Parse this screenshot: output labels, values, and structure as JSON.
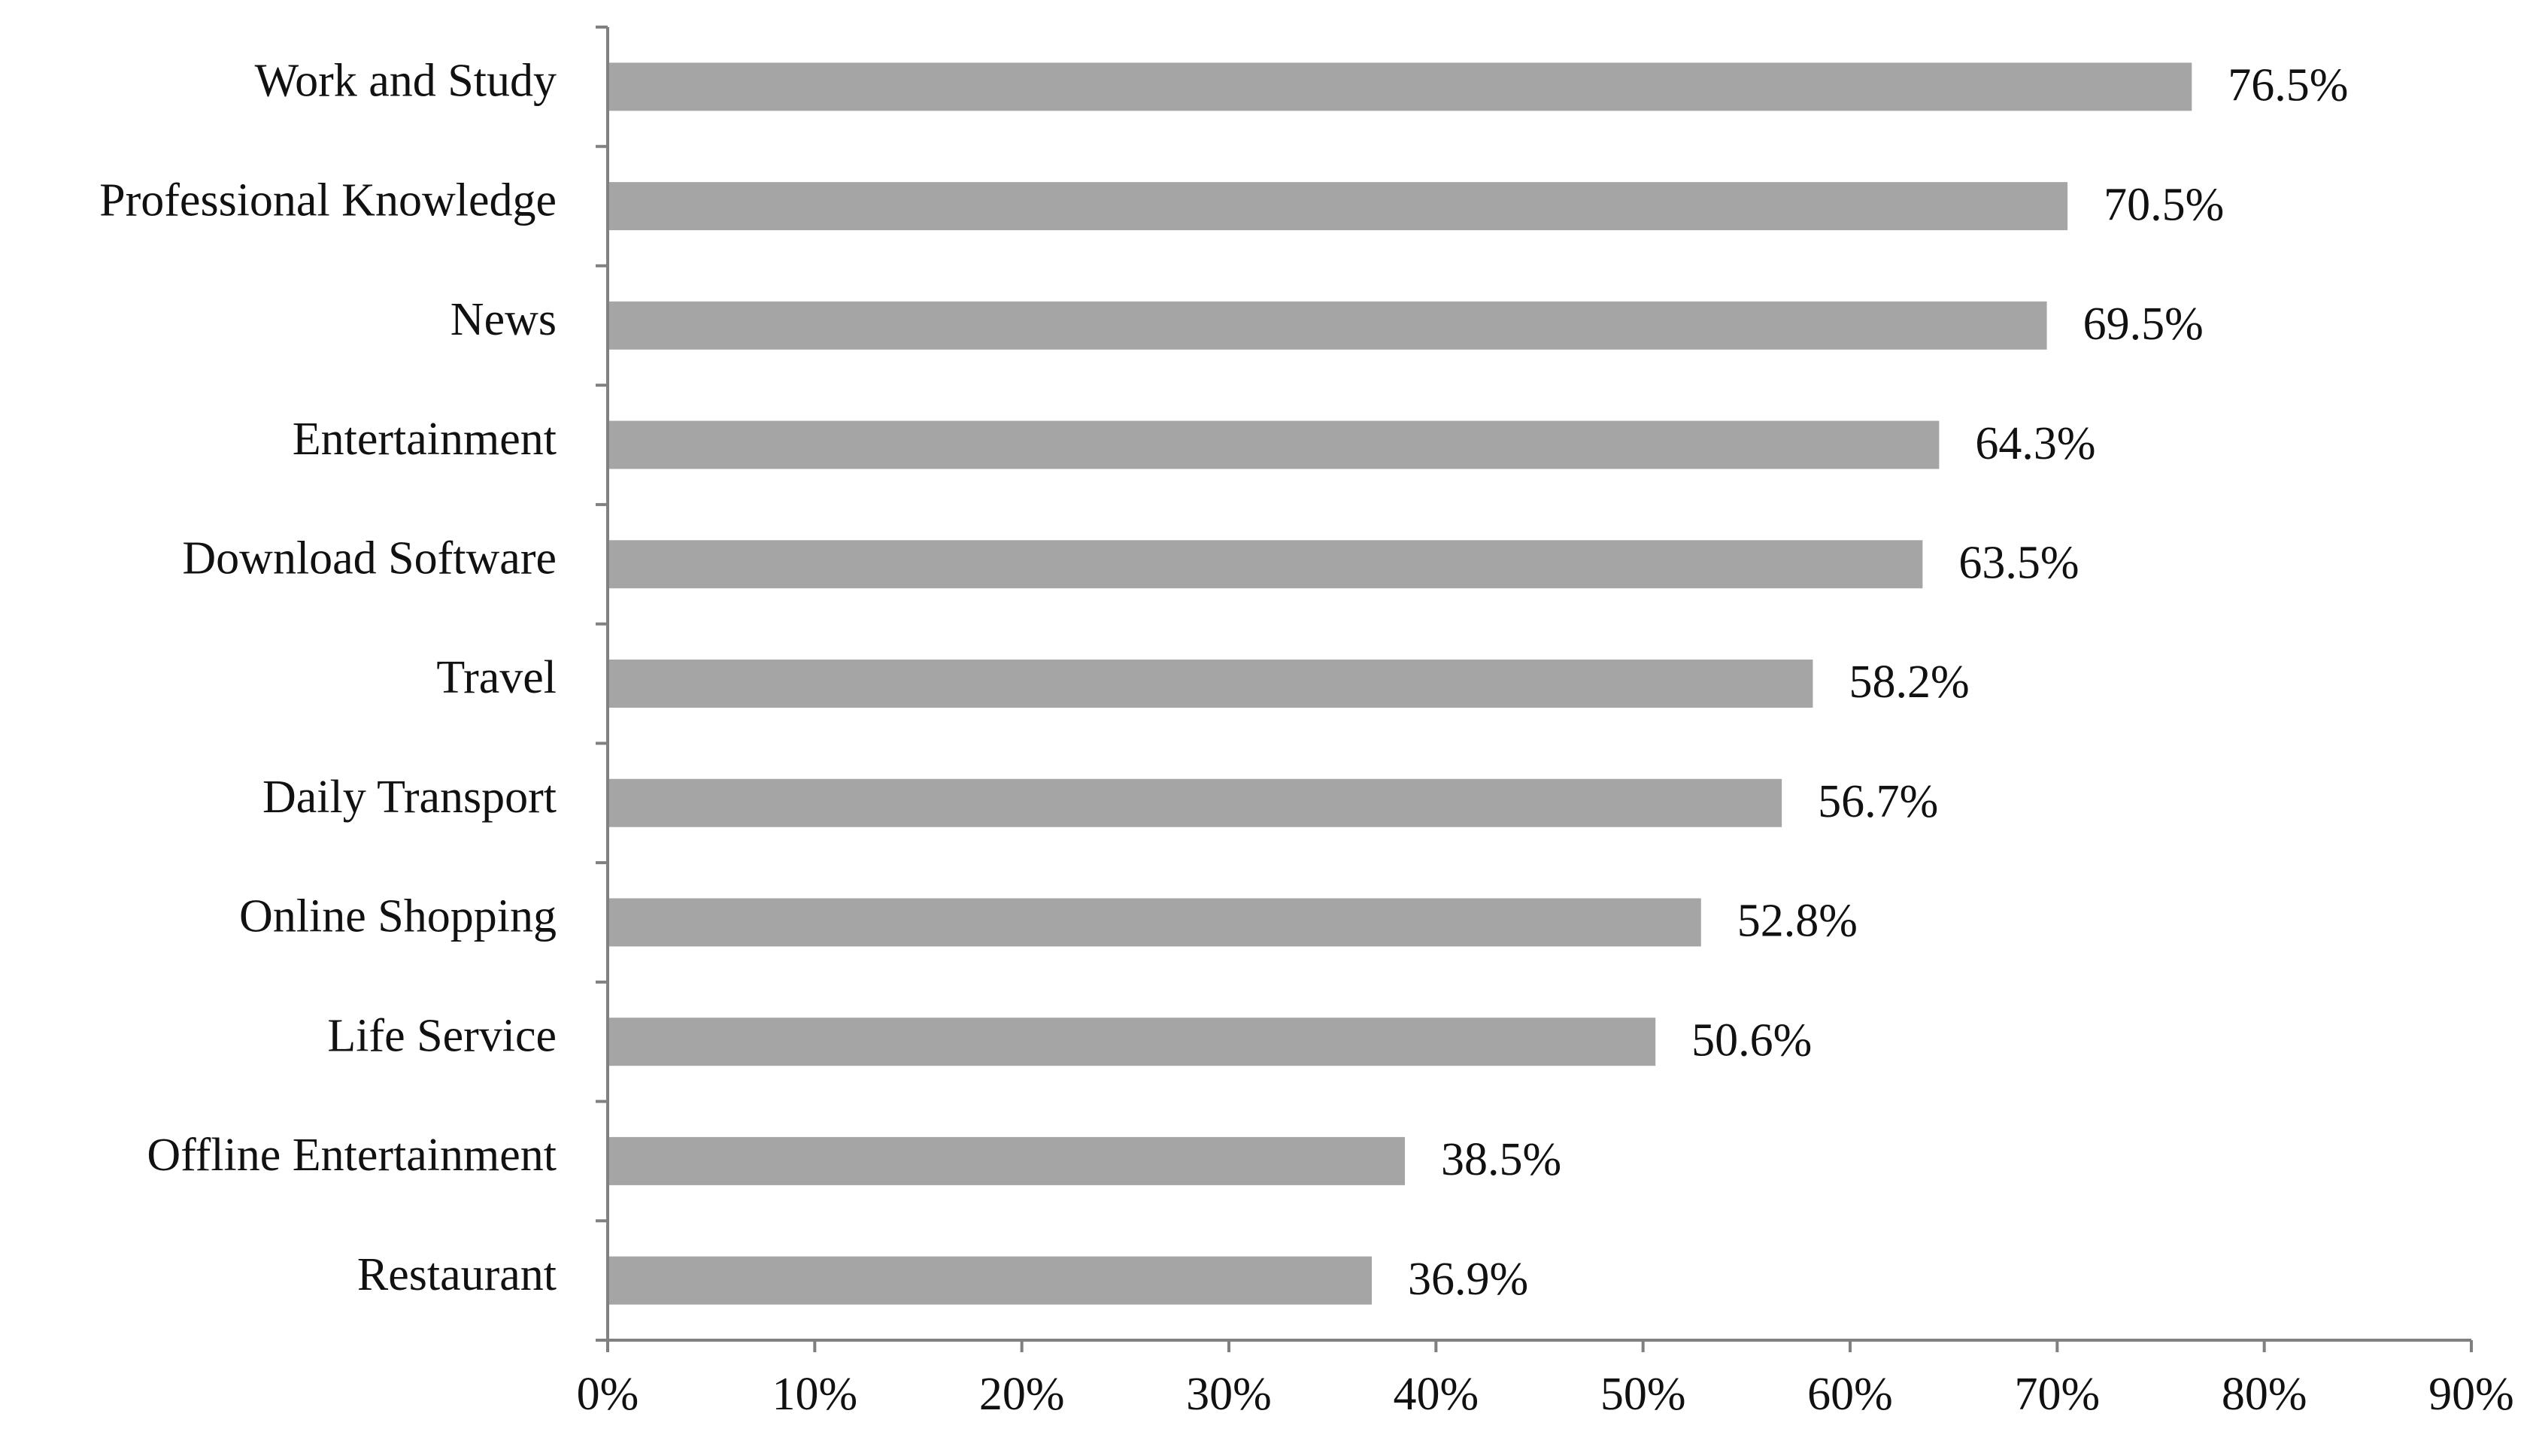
{
  "chart_data": {
    "type": "bar",
    "orientation": "horizontal",
    "categories": [
      "Work and Study",
      "Professional Knowledge",
      "News",
      "Entertainment",
      "Download Software",
      "Travel",
      "Daily Transport",
      "Online Shopping",
      "Life Service",
      "Offline Entertainment",
      "Restaurant"
    ],
    "values": [
      76.5,
      70.5,
      69.5,
      64.3,
      63.5,
      58.2,
      56.7,
      52.8,
      50.6,
      38.5,
      36.9
    ],
    "value_labels": [
      "76.5%",
      "70.5%",
      "69.5%",
      "64.3%",
      "63.5%",
      "58.2%",
      "56.7%",
      "52.8%",
      "50.6%",
      "38.5%",
      "36.9%"
    ],
    "x_ticks": [
      0,
      10,
      20,
      30,
      40,
      50,
      60,
      70,
      80,
      90
    ],
    "x_tick_labels": [
      "0%",
      "10%",
      "20%",
      "30%",
      "40%",
      "50%",
      "60%",
      "70%",
      "80%",
      "90%"
    ],
    "xlim": [
      0,
      90
    ],
    "title": "",
    "xlabel": "",
    "ylabel": "",
    "grid": false,
    "legend": "none",
    "bar_color": "#a5a5a5",
    "axis_color": "#808080"
  }
}
